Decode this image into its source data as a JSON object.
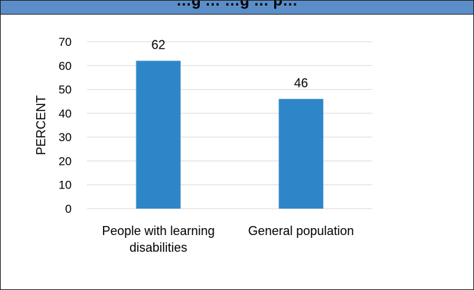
{
  "header": {
    "title": "…g … …g … p…"
  },
  "chart_data": {
    "type": "bar",
    "categories": [
      "People with learning disabilities",
      "General population"
    ],
    "category_lines": [
      [
        "People with learning",
        "disabilities"
      ],
      [
        "General population"
      ]
    ],
    "values": [
      62,
      46
    ],
    "data_labels": [
      "62",
      "46"
    ],
    "ylabel": "PERCENT",
    "xlabel": "",
    "ylim": [
      0,
      70
    ],
    "yticks": [
      0,
      10,
      20,
      30,
      40,
      50,
      60,
      70
    ],
    "grid": true,
    "bar_color": "#2e86c8",
    "grid_color": "#d9d9d9",
    "title_bar_color": "#5b8ec9"
  }
}
